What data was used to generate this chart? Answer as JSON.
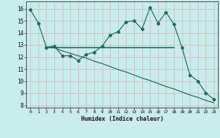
{
  "xlabel": "Humidex (Indice chaleur)",
  "bg_color": "#c8ecec",
  "grid_color": "#d4b8b8",
  "line_color": "#1a6b5a",
  "xlim": [
    -0.5,
    23.5
  ],
  "ylim": [
    7.8,
    16.6
  ],
  "yticks": [
    8,
    9,
    10,
    11,
    12,
    13,
    14,
    15,
    16
  ],
  "xticks": [
    0,
    1,
    2,
    3,
    4,
    5,
    6,
    7,
    8,
    9,
    10,
    11,
    12,
    13,
    14,
    15,
    16,
    17,
    18,
    19,
    20,
    21,
    22,
    23
  ],
  "series1_x": [
    0,
    1,
    2,
    3,
    4,
    5,
    6,
    7,
    8,
    9,
    10,
    11,
    12,
    13,
    14,
    15,
    16,
    17,
    18,
    19,
    20,
    21,
    22,
    23
  ],
  "series1_y": [
    15.9,
    14.8,
    12.8,
    12.9,
    12.1,
    12.1,
    11.7,
    12.2,
    12.4,
    12.9,
    13.8,
    14.1,
    14.9,
    15.0,
    14.3,
    16.1,
    14.8,
    15.7,
    14.7,
    12.8,
    10.5,
    10.0,
    9.0,
    8.5
  ],
  "series2_x": [
    2,
    3,
    4,
    5,
    6,
    7,
    8,
    9,
    10,
    11,
    12,
    13,
    14,
    15,
    16,
    17,
    18
  ],
  "series2_y": [
    12.8,
    12.8,
    12.8,
    12.8,
    12.8,
    12.8,
    12.8,
    12.8,
    12.8,
    12.8,
    12.8,
    12.8,
    12.8,
    12.8,
    12.8,
    12.8,
    12.8
  ],
  "series3_x": [
    2,
    3,
    4,
    5,
    6,
    7,
    8,
    9,
    10,
    11,
    12,
    13,
    14,
    15,
    16,
    17,
    18,
    19,
    20,
    21,
    22,
    23
  ],
  "series3_y": [
    12.8,
    12.75,
    12.5,
    12.3,
    12.1,
    11.9,
    11.65,
    11.45,
    11.2,
    10.95,
    10.75,
    10.5,
    10.25,
    10.05,
    9.8,
    9.55,
    9.35,
    9.1,
    8.85,
    8.65,
    8.4,
    8.2
  ]
}
